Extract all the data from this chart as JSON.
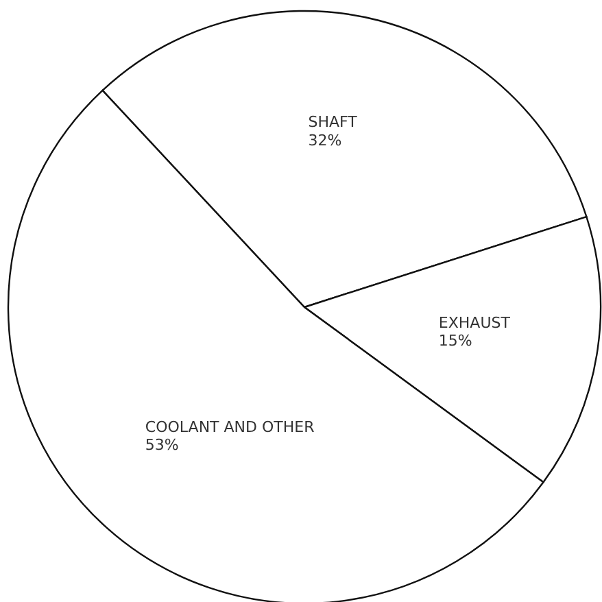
{
  "chart_data": {
    "type": "pie",
    "categories": [
      "SHAFT",
      "EXHAUST",
      "COOLANT AND OTHER"
    ],
    "values": [
      32,
      15,
      53
    ],
    "value_labels": [
      "32%",
      "15%",
      "53%"
    ],
    "colors": [
      "#ffffff",
      "#ffffff",
      "#ffffff"
    ]
  }
}
